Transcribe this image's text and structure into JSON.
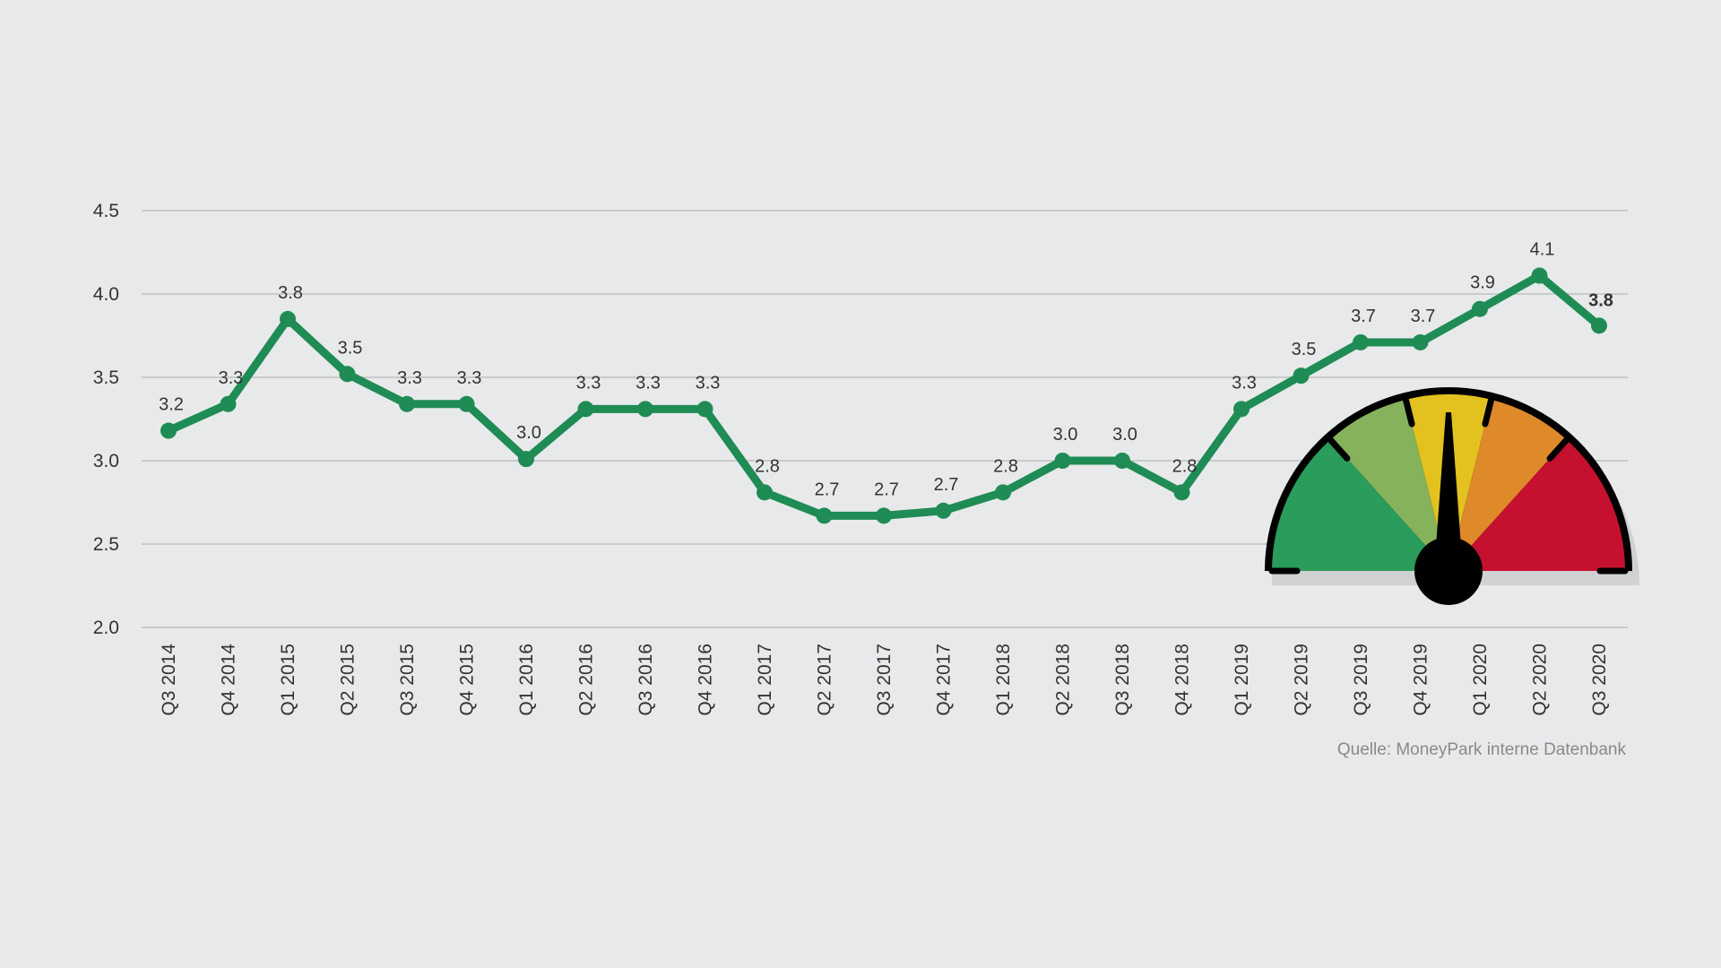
{
  "source_note": "Quelle: MoneyPark interne Datenbank",
  "colors": {
    "line": "#1e8c54",
    "grid": "#c9cacc",
    "text": "#333333",
    "background": "#e8e9eb",
    "gauge_segments": [
      "#2a9c5c",
      "#86b25c",
      "#e3c21f",
      "#de8a2a",
      "#c6102f"
    ],
    "gauge_needle": "#000000"
  },
  "gauge": {
    "name": "speedometer-gauge",
    "needle_level": 0.5
  },
  "chart_data": {
    "type": "line",
    "title": "",
    "xlabel": "",
    "ylabel": "",
    "ylim": [
      2.0,
      4.5
    ],
    "yticks": [
      "2.0",
      "2.5",
      "3.0",
      "3.5",
      "4.0",
      "4.5"
    ],
    "grid": true,
    "categories": [
      "Q3 2014",
      "Q4 2014",
      "Q1 2015",
      "Q2 2015",
      "Q3 2015",
      "Q4 2015",
      "Q1 2016",
      "Q2 2016",
      "Q3 2016",
      "Q4 2016",
      "Q1 2017",
      "Q2 2017",
      "Q3 2017",
      "Q4 2017",
      "Q1 2018",
      "Q2 2018",
      "Q3 2018",
      "Q4 2018",
      "Q1 2019",
      "Q2 2019",
      "Q3 2019",
      "Q4 2019",
      "Q1 2020",
      "Q2 2020",
      "Q3 2020"
    ],
    "series": [
      {
        "values": [
          3.18,
          3.34,
          3.85,
          3.52,
          3.34,
          3.34,
          3.01,
          3.31,
          3.31,
          3.31,
          2.81,
          2.67,
          2.67,
          2.7,
          2.81,
          3.0,
          3.0,
          2.81,
          3.31,
          3.51,
          3.71,
          3.71,
          3.91,
          4.11,
          3.81
        ],
        "labels": [
          "3.2",
          "3.3",
          "3.8",
          "3.5",
          "3.3",
          "3.3",
          "3.0",
          "3.3",
          "3.3",
          "3.3",
          "2.8",
          "2.7",
          "2.7",
          "2.7",
          "2.8",
          "3.0",
          "3.0",
          "2.8",
          "3.3",
          "3.5",
          "3.7",
          "3.7",
          "3.9",
          "4.1",
          "3.8"
        ]
      }
    ]
  }
}
